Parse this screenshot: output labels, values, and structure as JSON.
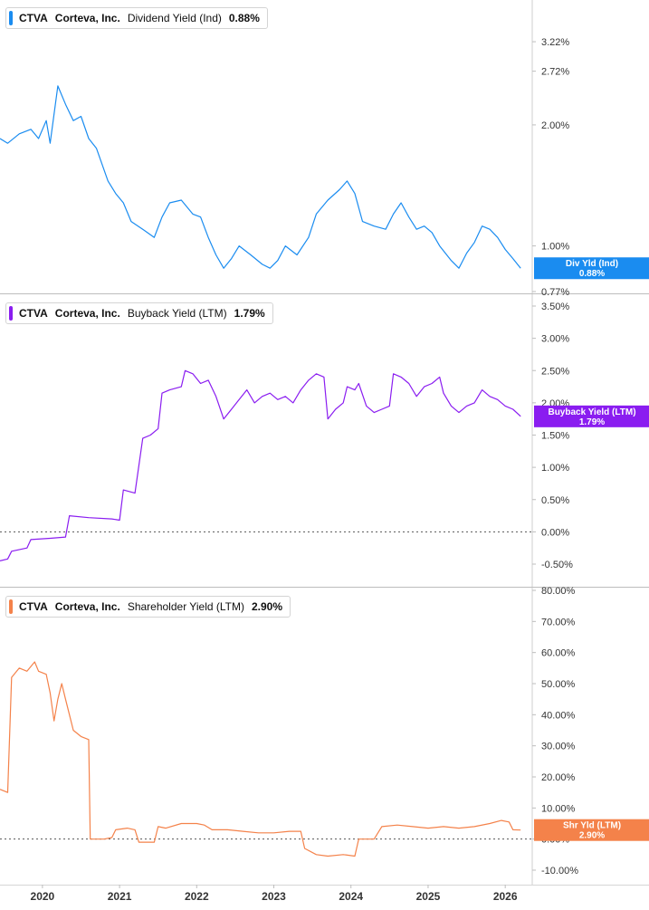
{
  "panels": [
    {
      "ticker": "CTVA",
      "company": "Corteva, Inc.",
      "metric": "Dividend Yield (Ind)",
      "value": "0.88%",
      "tag_label": "Div Yld (Ind)",
      "tag_value": "0.88%",
      "color": "#1a8cf0"
    },
    {
      "ticker": "CTVA",
      "company": "Corteva, Inc.",
      "metric": "Buyback Yield (LTM)",
      "value": "1.79%",
      "tag_label": "Buyback Yield (LTM)",
      "tag_value": "1.79%",
      "color": "#8a1df0"
    },
    {
      "ticker": "CTVA",
      "company": "Corteva, Inc.",
      "metric": "Shareholder Yield (LTM)",
      "value": "2.90%",
      "tag_label": "Shr Yld (LTM)",
      "tag_value": "2.90%",
      "color": "#f4824a"
    }
  ],
  "chart_data": [
    {
      "type": "line",
      "scale": "log",
      "title": "CTVA Corteva, Inc. Dividend Yield (Ind) 0.88%",
      "series": [
        {
          "name": "Div Yld (Ind)",
          "color": "#1a8cf0",
          "points": [
            [
              2019.45,
              1.85
            ],
            [
              2019.55,
              1.8
            ],
            [
              2019.7,
              1.9
            ],
            [
              2019.85,
              1.95
            ],
            [
              2019.95,
              1.85
            ],
            [
              2020.05,
              2.05
            ],
            [
              2020.1,
              1.8
            ],
            [
              2020.2,
              2.5
            ],
            [
              2020.3,
              2.25
            ],
            [
              2020.4,
              2.05
            ],
            [
              2020.5,
              2.1
            ],
            [
              2020.6,
              1.85
            ],
            [
              2020.7,
              1.75
            ],
            [
              2020.85,
              1.45
            ],
            [
              2020.95,
              1.35
            ],
            [
              2021.05,
              1.28
            ],
            [
              2021.15,
              1.15
            ],
            [
              2021.3,
              1.1
            ],
            [
              2021.45,
              1.05
            ],
            [
              2021.55,
              1.18
            ],
            [
              2021.65,
              1.28
            ],
            [
              2021.8,
              1.3
            ],
            [
              2021.95,
              1.2
            ],
            [
              2022.05,
              1.18
            ],
            [
              2022.15,
              1.05
            ],
            [
              2022.25,
              0.95
            ],
            [
              2022.35,
              0.88
            ],
            [
              2022.45,
              0.93
            ],
            [
              2022.55,
              1.0
            ],
            [
              2022.7,
              0.95
            ],
            [
              2022.85,
              0.9
            ],
            [
              2022.95,
              0.88
            ],
            [
              2023.05,
              0.92
            ],
            [
              2023.15,
              1.0
            ],
            [
              2023.3,
              0.95
            ],
            [
              2023.45,
              1.05
            ],
            [
              2023.55,
              1.2
            ],
            [
              2023.7,
              1.3
            ],
            [
              2023.85,
              1.38
            ],
            [
              2023.95,
              1.45
            ],
            [
              2024.05,
              1.35
            ],
            [
              2024.15,
              1.15
            ],
            [
              2024.3,
              1.12
            ],
            [
              2024.45,
              1.1
            ],
            [
              2024.55,
              1.2
            ],
            [
              2024.65,
              1.28
            ],
            [
              2024.75,
              1.18
            ],
            [
              2024.85,
              1.1
            ],
            [
              2024.95,
              1.12
            ],
            [
              2025.05,
              1.08
            ],
            [
              2025.15,
              1.0
            ],
            [
              2025.3,
              0.92
            ],
            [
              2025.4,
              0.88
            ],
            [
              2025.5,
              0.96
            ],
            [
              2025.6,
              1.02
            ],
            [
              2025.7,
              1.12
            ],
            [
              2025.8,
              1.1
            ],
            [
              2025.9,
              1.05
            ],
            [
              2026.0,
              0.98
            ],
            [
              2026.1,
              0.93
            ],
            [
              2026.2,
              0.88
            ]
          ]
        }
      ],
      "y_ticks": [
        "3.22%",
        "2.72%",
        "2.00%",
        "1.00%",
        "0.77%"
      ],
      "y_tick_values": [
        3.22,
        2.72,
        2.0,
        1.0,
        0.77
      ],
      "ylim": [
        0.77,
        3.5
      ]
    },
    {
      "type": "line",
      "scale": "linear",
      "title": "CTVA Corteva, Inc. Buyback Yield (LTM) 1.79%",
      "series": [
        {
          "name": "Buyback Yield (LTM)",
          "color": "#8a1df0",
          "points": [
            [
              2019.45,
              -0.45
            ],
            [
              2019.55,
              -0.42
            ],
            [
              2019.6,
              -0.3
            ],
            [
              2019.8,
              -0.25
            ],
            [
              2019.85,
              -0.12
            ],
            [
              2020.1,
              -0.1
            ],
            [
              2020.3,
              -0.08
            ],
            [
              2020.35,
              0.25
            ],
            [
              2020.6,
              0.22
            ],
            [
              2020.9,
              0.2
            ],
            [
              2021.0,
              0.18
            ],
            [
              2021.05,
              0.65
            ],
            [
              2021.2,
              0.6
            ],
            [
              2021.3,
              1.45
            ],
            [
              2021.4,
              1.5
            ],
            [
              2021.5,
              1.6
            ],
            [
              2021.55,
              2.15
            ],
            [
              2021.65,
              2.2
            ],
            [
              2021.8,
              2.25
            ],
            [
              2021.85,
              2.5
            ],
            [
              2021.95,
              2.45
            ],
            [
              2022.05,
              2.3
            ],
            [
              2022.15,
              2.35
            ],
            [
              2022.25,
              2.1
            ],
            [
              2022.35,
              1.75
            ],
            [
              2022.45,
              1.9
            ],
            [
              2022.55,
              2.05
            ],
            [
              2022.65,
              2.2
            ],
            [
              2022.75,
              2.0
            ],
            [
              2022.85,
              2.1
            ],
            [
              2022.95,
              2.15
            ],
            [
              2023.05,
              2.05
            ],
            [
              2023.15,
              2.1
            ],
            [
              2023.25,
              2.0
            ],
            [
              2023.35,
              2.2
            ],
            [
              2023.45,
              2.35
            ],
            [
              2023.55,
              2.45
            ],
            [
              2023.65,
              2.4
            ],
            [
              2023.7,
              1.75
            ],
            [
              2023.8,
              1.9
            ],
            [
              2023.9,
              2.0
            ],
            [
              2023.95,
              2.25
            ],
            [
              2024.05,
              2.2
            ],
            [
              2024.1,
              2.3
            ],
            [
              2024.2,
              1.95
            ],
            [
              2024.3,
              1.85
            ],
            [
              2024.4,
              1.9
            ],
            [
              2024.5,
              1.95
            ],
            [
              2024.55,
              2.45
            ],
            [
              2024.65,
              2.4
            ],
            [
              2024.75,
              2.3
            ],
            [
              2024.85,
              2.1
            ],
            [
              2024.95,
              2.25
            ],
            [
              2025.05,
              2.3
            ],
            [
              2025.15,
              2.4
            ],
            [
              2025.2,
              2.15
            ],
            [
              2025.3,
              1.95
            ],
            [
              2025.4,
              1.85
            ],
            [
              2025.5,
              1.95
            ],
            [
              2025.6,
              2.0
            ],
            [
              2025.7,
              2.2
            ],
            [
              2025.8,
              2.1
            ],
            [
              2025.9,
              2.05
            ],
            [
              2026.0,
              1.95
            ],
            [
              2026.1,
              1.9
            ],
            [
              2026.2,
              1.79
            ]
          ]
        }
      ],
      "y_ticks": [
        "3.50%",
        "3.00%",
        "2.50%",
        "2.00%",
        "1.50%",
        "1.00%",
        "0.50%",
        "0.00%",
        "-0.50%"
      ],
      "y_tick_values": [
        3.5,
        3.0,
        2.5,
        2.0,
        1.5,
        1.0,
        0.5,
        0.0,
        -0.5
      ],
      "ylim": [
        -0.5,
        3.5
      ]
    },
    {
      "type": "line",
      "scale": "linear",
      "title": "CTVA Corteva, Inc. Shareholder Yield (LTM) 2.90%",
      "series": [
        {
          "name": "Shr Yld (LTM)",
          "color": "#f4824a",
          "points": [
            [
              2019.45,
              16
            ],
            [
              2019.55,
              15
            ],
            [
              2019.6,
              52
            ],
            [
              2019.7,
              55
            ],
            [
              2019.8,
              54
            ],
            [
              2019.9,
              57
            ],
            [
              2019.95,
              54
            ],
            [
              2020.05,
              53
            ],
            [
              2020.1,
              47
            ],
            [
              2020.15,
              38
            ],
            [
              2020.2,
              45
            ],
            [
              2020.25,
              50
            ],
            [
              2020.3,
              45
            ],
            [
              2020.35,
              40
            ],
            [
              2020.4,
              35
            ],
            [
              2020.5,
              33
            ],
            [
              2020.6,
              32
            ],
            [
              2020.62,
              0
            ],
            [
              2020.8,
              0
            ],
            [
              2020.9,
              0.5
            ],
            [
              2020.95,
              3
            ],
            [
              2021.1,
              3.5
            ],
            [
              2021.2,
              3
            ],
            [
              2021.25,
              -1
            ],
            [
              2021.45,
              -1
            ],
            [
              2021.5,
              4
            ],
            [
              2021.6,
              3.5
            ],
            [
              2021.8,
              5
            ],
            [
              2022.0,
              5
            ],
            [
              2022.1,
              4.5
            ],
            [
              2022.2,
              3
            ],
            [
              2022.4,
              3
            ],
            [
              2022.6,
              2.5
            ],
            [
              2022.8,
              2
            ],
            [
              2023.0,
              2
            ],
            [
              2023.2,
              2.5
            ],
            [
              2023.35,
              2.5
            ],
            [
              2023.4,
              -3
            ],
            [
              2023.55,
              -5
            ],
            [
              2023.7,
              -5.5
            ],
            [
              2023.9,
              -5
            ],
            [
              2024.05,
              -5.5
            ],
            [
              2024.1,
              0
            ],
            [
              2024.3,
              0
            ],
            [
              2024.4,
              4
            ],
            [
              2024.6,
              4.5
            ],
            [
              2024.8,
              4
            ],
            [
              2025.0,
              3.5
            ],
            [
              2025.2,
              4
            ],
            [
              2025.4,
              3.5
            ],
            [
              2025.6,
              4
            ],
            [
              2025.8,
              5
            ],
            [
              2025.95,
              6
            ],
            [
              2026.05,
              5.5
            ],
            [
              2026.1,
              3
            ],
            [
              2026.2,
              2.9
            ]
          ]
        }
      ],
      "y_ticks": [
        "80.00%",
        "70.00%",
        "60.00%",
        "50.00%",
        "40.00%",
        "30.00%",
        "20.00%",
        "10.00%",
        "0.00%",
        "-10.00%"
      ],
      "y_tick_values": [
        80,
        70,
        60,
        50,
        40,
        30,
        20,
        10,
        0,
        -10
      ],
      "ylim": [
        -10,
        80
      ]
    }
  ],
  "x_axis": {
    "labels": [
      "2020",
      "2021",
      "2022",
      "2023",
      "2024",
      "2025",
      "2026"
    ],
    "values": [
      2020,
      2021,
      2022,
      2023,
      2024,
      2025,
      2026
    ],
    "xlim": [
      2019.45,
      2026.35
    ]
  }
}
